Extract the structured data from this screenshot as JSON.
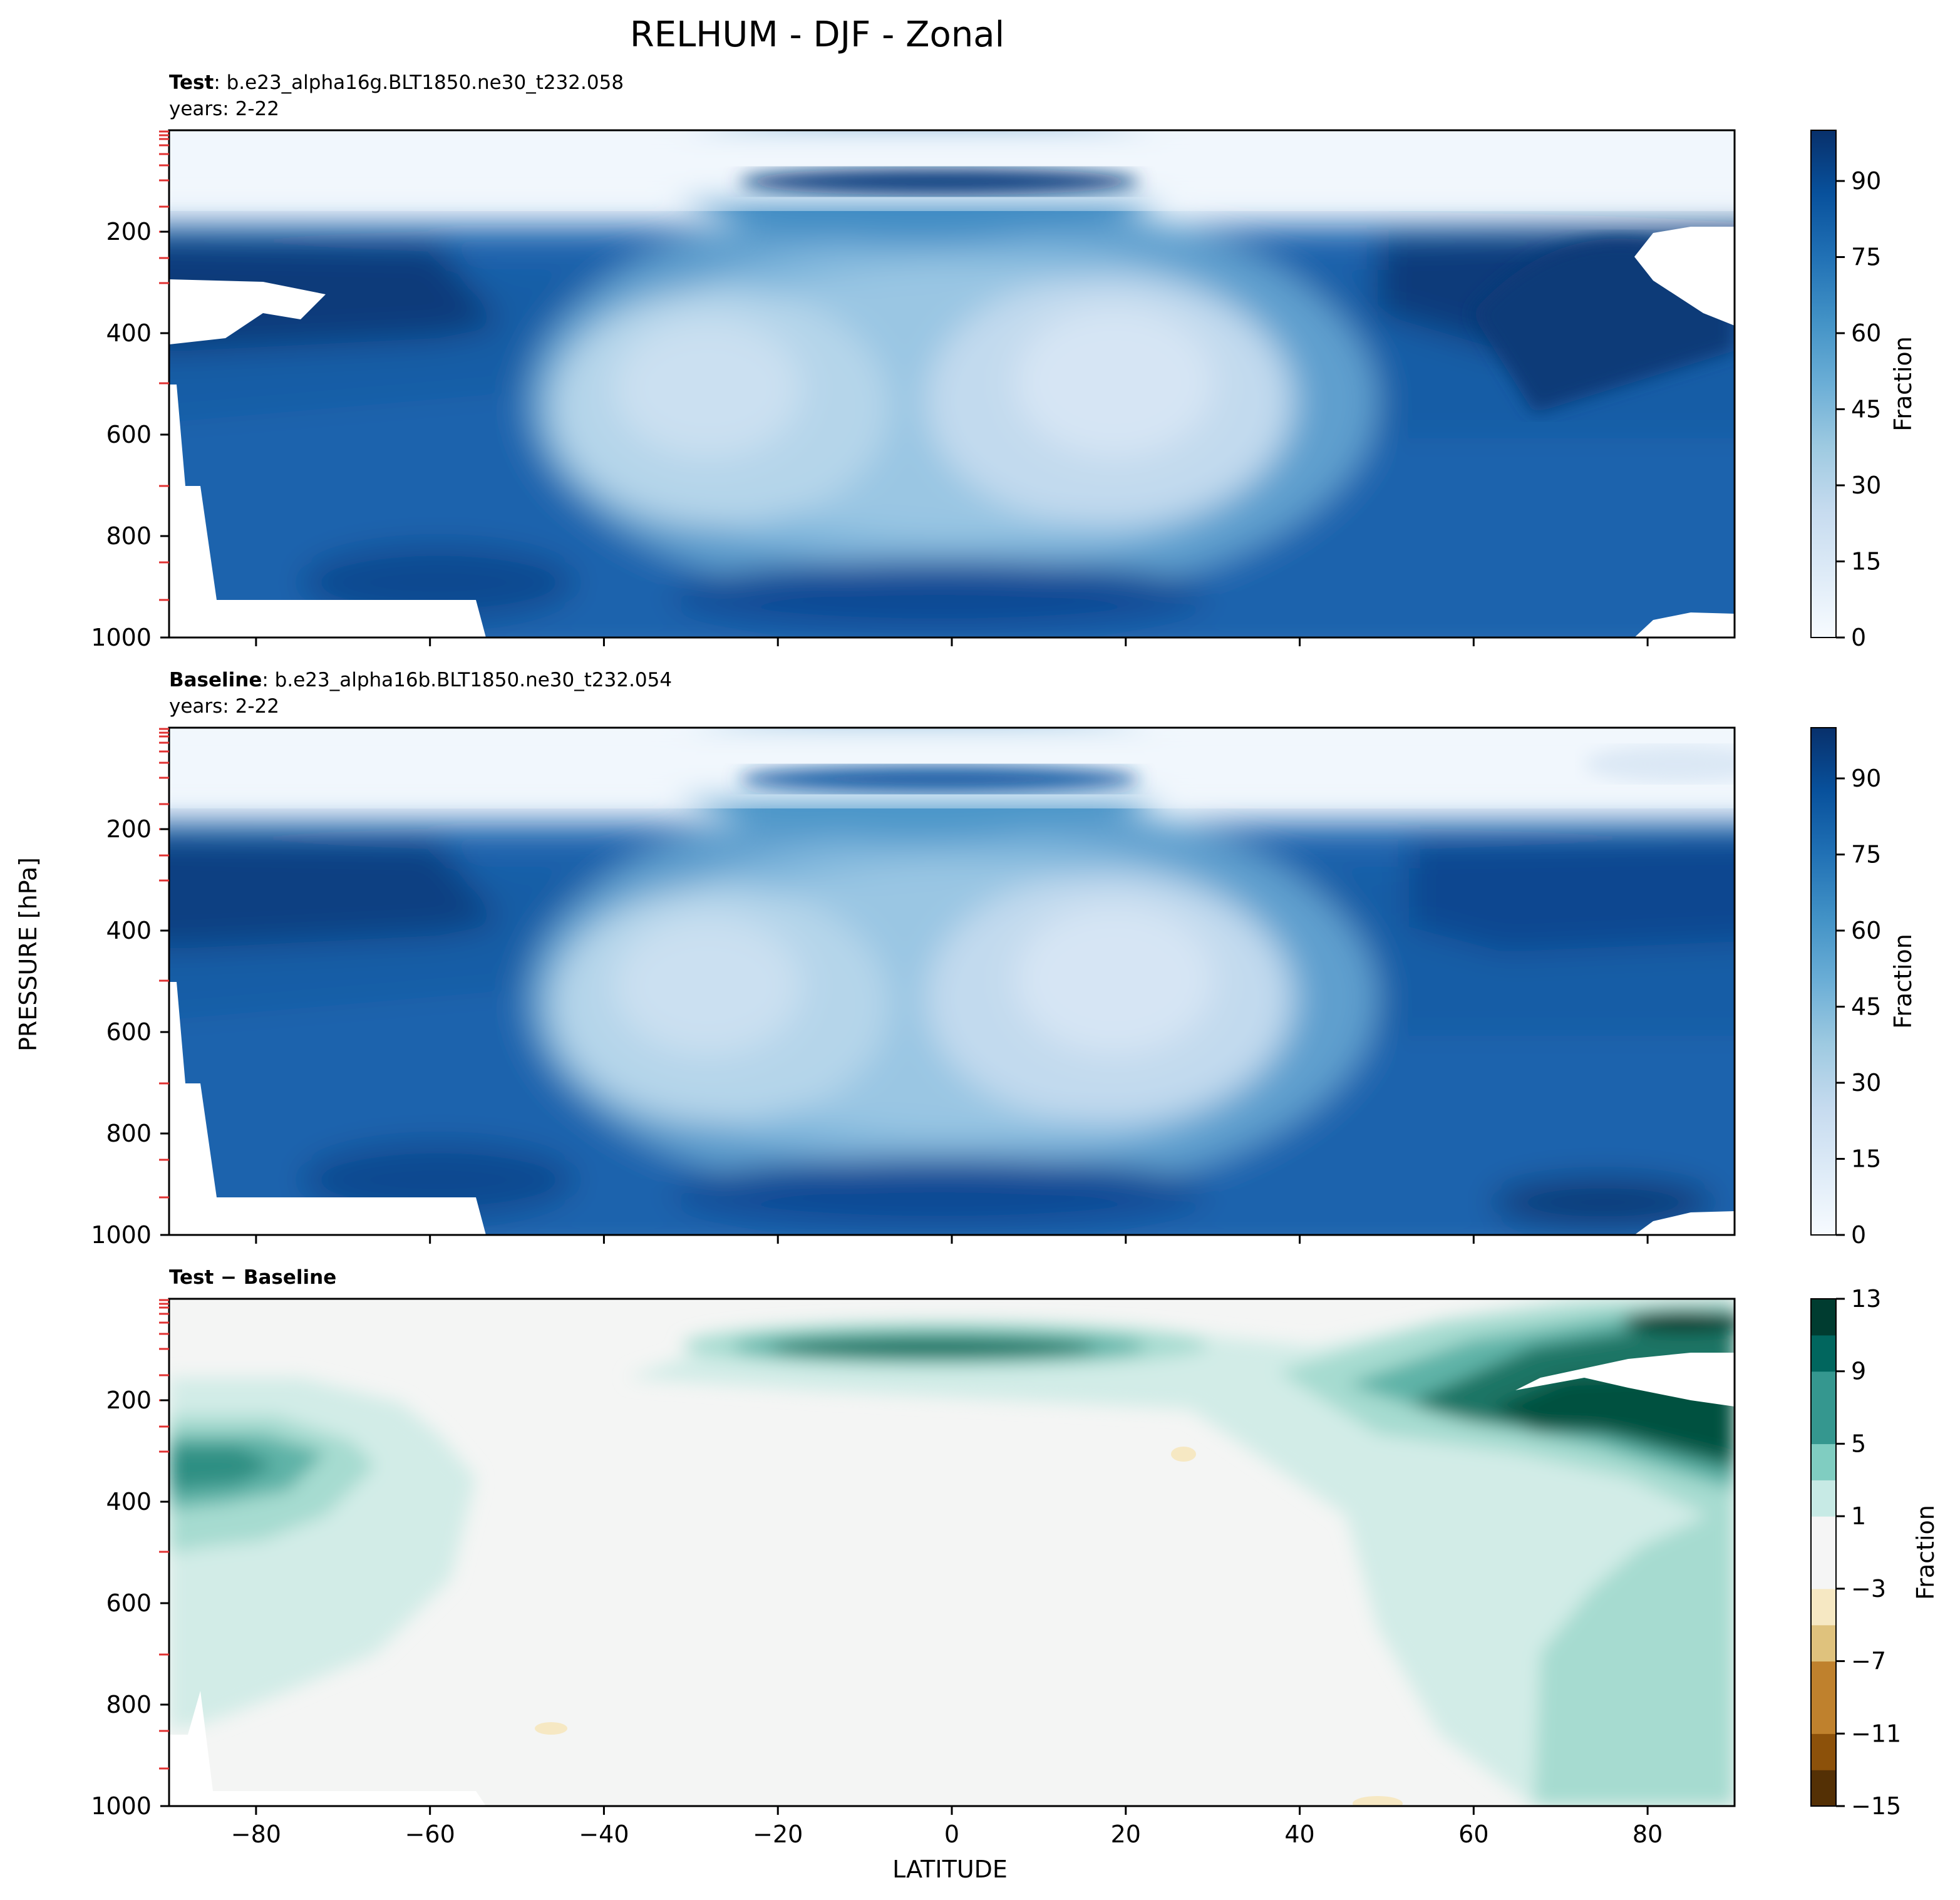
{
  "chart_data": {
    "type": "contour",
    "title": "RELHUM - DJF - Zonal",
    "xlabel": "LATITUDE",
    "ylabel": "PRESSURE [hPa]",
    "xlim": [
      -90,
      90
    ],
    "ylim": [
      1000,
      0
    ],
    "x_ticks": [
      -80,
      -60,
      -40,
      -20,
      0,
      20,
      40,
      60,
      80
    ],
    "y_ticks": [
      200,
      400,
      600,
      800,
      1000
    ],
    "panels": [
      {
        "name": "test",
        "label_bold": "Test",
        "label_rest": ": b.e23_alpha16g.BLT1850.ne30_t232.058",
        "years": "years: 2-22",
        "colorbar_label": "Fraction",
        "colorbar_ticks": [
          0,
          15,
          30,
          45,
          60,
          75,
          90
        ],
        "colorbar_range": [
          0,
          100
        ],
        "colormap": [
          "#f7fbff",
          "#deebf7",
          "#c6dbef",
          "#9ecae1",
          "#6baed6",
          "#4292c6",
          "#2171b5",
          "#08519c",
          "#08306b"
        ]
      },
      {
        "name": "baseline",
        "label_bold": "Baseline",
        "label_rest": ": b.e23_alpha16b.BLT1850.ne30_t232.054",
        "years": "years: 2-22",
        "colorbar_label": "Fraction",
        "colorbar_ticks": [
          0,
          15,
          30,
          45,
          60,
          75,
          90
        ],
        "colorbar_range": [
          0,
          100
        ],
        "colormap": [
          "#f7fbff",
          "#deebf7",
          "#c6dbef",
          "#9ecae1",
          "#6baed6",
          "#4292c6",
          "#2171b5",
          "#08519c",
          "#08306b"
        ]
      },
      {
        "name": "diff",
        "label_bold": "Test − Baseline",
        "label_rest": "",
        "years": "",
        "colorbar_label": "Fraction",
        "colorbar_ticks": [
          13,
          9,
          5,
          1,
          -3,
          -7,
          -11,
          -15
        ],
        "colorbar_tick_labels": [
          "13",
          "9",
          "5",
          "1",
          "−3",
          "−7",
          "−11",
          "−15"
        ],
        "colorbar_range": [
          -15,
          13
        ],
        "colormap": [
          "#543005",
          "#8c510a",
          "#bf812d",
          "#dfc27d",
          "#f6e8c3",
          "#f5f5f5",
          "#c7eae5",
          "#80cdc1",
          "#35978f",
          "#01665e",
          "#003c30"
        ]
      }
    ]
  }
}
